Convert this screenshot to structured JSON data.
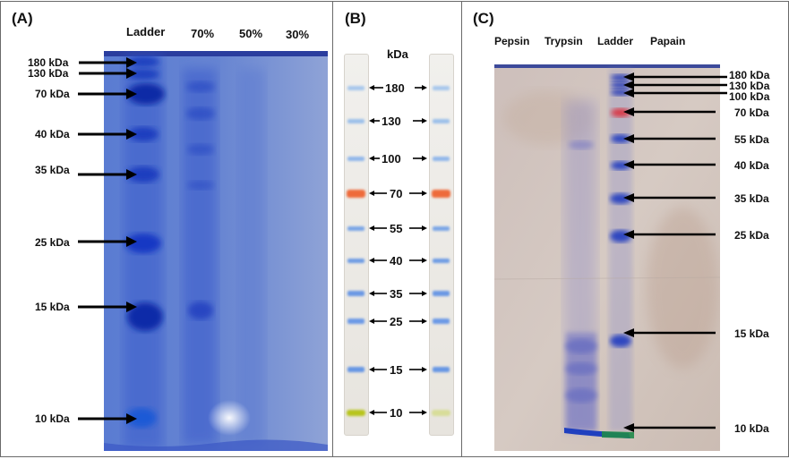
{
  "panel_a": {
    "label": "(A)",
    "lanes": [
      "Ladder",
      "70%",
      "50%",
      "30%"
    ],
    "markers": [
      "180 kDa",
      "130 kDa",
      "70 kDa",
      "40 kDa",
      "35 kDa",
      "25 kDa",
      "15 kDa",
      "10 kDa"
    ]
  },
  "panel_b": {
    "label": "(B)",
    "unit": "kDa",
    "markers": [
      "180",
      "130",
      "100",
      "70",
      "55",
      "40",
      "35",
      "25",
      "15",
      "10"
    ]
  },
  "panel_c": {
    "label": "(C)",
    "lanes": [
      "Pepsin",
      "Trypsin",
      "Ladder",
      "Papain"
    ],
    "markers": [
      "180 kDa",
      "130 kDa",
      "100 kDa",
      "70 kDa",
      "55 kDa",
      "40 kDa",
      "35 kDa",
      "25 kDa",
      "15 kDa",
      "10 kDa"
    ]
  },
  "colors": {
    "gel_a_background": "#4f6fc8",
    "ladder_band": "#1f47c8",
    "prestained_70kda": "#ee6a3a",
    "prestained_10kda": "#b8c51c",
    "gel_c_background": "#d4c7c0",
    "arrow": "#000000"
  }
}
